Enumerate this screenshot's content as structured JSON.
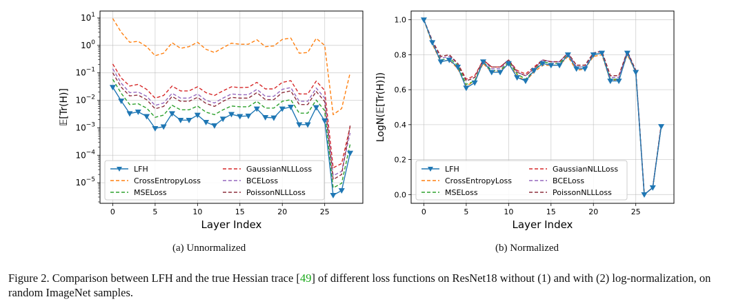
{
  "chart_data": [
    {
      "type": "line",
      "panel_caption": "(a) Unnormalized",
      "xlabel": "Layer Index",
      "ylabel": "𝔼[Tr(H)]",
      "yscale": "log",
      "xlim": [
        -1.5,
        29.5
      ],
      "ylim_log10": [
        -5.75,
        1.25
      ],
      "xticks": [
        0,
        5,
        10,
        15,
        20,
        25
      ],
      "yticks": [
        {
          "exp": 1,
          "label": "10",
          "sup": "1"
        },
        {
          "exp": 0,
          "label": "10",
          "sup": "0"
        },
        {
          "exp": -1,
          "label": "10",
          "sup": "−1"
        },
        {
          "exp": -2,
          "label": "10",
          "sup": "−2"
        },
        {
          "exp": -3,
          "label": "10",
          "sup": "−3"
        },
        {
          "exp": -4,
          "label": "10",
          "sup": "−4"
        },
        {
          "exp": -5,
          "label": "10",
          "sup": "−5"
        }
      ],
      "grid": true,
      "legend_position": "lower-left",
      "x": [
        0,
        1,
        2,
        3,
        4,
        5,
        6,
        7,
        8,
        9,
        10,
        11,
        12,
        13,
        14,
        15,
        16,
        17,
        18,
        19,
        20,
        21,
        22,
        23,
        24,
        25,
        26,
        27,
        28
      ],
      "series": [
        {
          "name": "LFH",
          "color": "#1f77b4",
          "style": "solid-marker",
          "values": [
            0.03,
            0.0095,
            0.0033,
            0.0038,
            0.0026,
            0.00095,
            0.0011,
            0.0033,
            0.0019,
            0.0019,
            0.0029,
            0.0016,
            0.0012,
            0.0021,
            0.0031,
            0.0026,
            0.0027,
            0.0049,
            0.0024,
            0.0023,
            0.0049,
            0.0057,
            0.0013,
            0.0013,
            0.0055,
            0.0018,
            3.5e-06,
            5.2e-06,
            0.00012
          ]
        },
        {
          "name": "CrossEntropyLoss",
          "color": "#ff7f0e",
          "style": "dashed",
          "values": [
            9.5,
            3.0,
            1.3,
            1.4,
            0.9,
            0.42,
            0.52,
            1.25,
            0.78,
            0.9,
            1.3,
            0.72,
            0.55,
            0.82,
            1.2,
            1.1,
            1.1,
            1.6,
            0.9,
            0.95,
            1.65,
            1.85,
            0.52,
            0.55,
            1.8,
            1.0,
            0.003,
            0.005,
            0.1
          ]
        },
        {
          "name": "MSELoss",
          "color": "#2ca02c",
          "style": "dashed",
          "values": [
            0.058,
            0.018,
            0.007,
            0.0075,
            0.0052,
            0.0024,
            0.0029,
            0.0066,
            0.0045,
            0.0045,
            0.0062,
            0.0037,
            0.003,
            0.0045,
            0.0062,
            0.0058,
            0.0058,
            0.0092,
            0.0052,
            0.0052,
            0.0092,
            0.0105,
            0.0034,
            0.0034,
            0.0102,
            0.0042,
            6.5e-06,
            9.5e-06,
            0.00025
          ]
        },
        {
          "name": "GaussianNLLLoss",
          "color": "#d62728",
          "style": "dashed",
          "values": [
            0.21,
            0.065,
            0.033,
            0.038,
            0.025,
            0.012,
            0.015,
            0.033,
            0.022,
            0.022,
            0.031,
            0.019,
            0.015,
            0.022,
            0.031,
            0.029,
            0.03,
            0.045,
            0.026,
            0.026,
            0.045,
            0.052,
            0.017,
            0.017,
            0.05,
            0.023,
            3.5e-05,
            5e-05,
            0.0011
          ]
        },
        {
          "name": "BCELoss",
          "color": "#9467bd",
          "style": "dashed",
          "values": [
            0.14,
            0.042,
            0.019,
            0.02,
            0.014,
            0.0065,
            0.008,
            0.018,
            0.012,
            0.012,
            0.017,
            0.01,
            0.008,
            0.012,
            0.017,
            0.016,
            0.016,
            0.025,
            0.014,
            0.014,
            0.025,
            0.029,
            0.0092,
            0.0092,
            0.028,
            0.012,
            1.8e-05,
            2.6e-05,
            0.00065
          ]
        },
        {
          "name": "PoissonNLLLoss",
          "color": "#8c2d3a",
          "style": "dashed",
          "values": [
            0.1,
            0.03,
            0.0145,
            0.0155,
            0.0105,
            0.0049,
            0.006,
            0.0138,
            0.0092,
            0.0092,
            0.0128,
            0.0077,
            0.006,
            0.0092,
            0.0128,
            0.012,
            0.012,
            0.019,
            0.0106,
            0.0106,
            0.019,
            0.022,
            0.007,
            0.007,
            0.021,
            0.009,
            1.3e-05,
            2e-05,
            0.0012
          ]
        }
      ]
    },
    {
      "type": "line",
      "panel_caption": "(b) Normalized",
      "xlabel": "Layer Index",
      "ylabel": "LogN(𝔼[Tr(H)])",
      "yscale": "linear",
      "xlim": [
        -1.5,
        29.5
      ],
      "ylim": [
        -0.05,
        1.05
      ],
      "xticks": [
        0,
        5,
        10,
        15,
        20,
        25
      ],
      "yticks": [
        0.0,
        0.2,
        0.4,
        0.6,
        0.8,
        1.0
      ],
      "ytick_labels": [
        "0.0",
        "0.2",
        "0.4",
        "0.6",
        "0.8",
        "1.0"
      ],
      "grid": true,
      "legend_position": "lower-left",
      "x": [
        0,
        1,
        2,
        3,
        4,
        5,
        6,
        7,
        8,
        9,
        10,
        11,
        12,
        13,
        14,
        15,
        16,
        17,
        18,
        19,
        20,
        21,
        22,
        23,
        24,
        25,
        26,
        27,
        28
      ],
      "series": [
        {
          "name": "LFH",
          "color": "#1f77b4",
          "style": "solid-marker",
          "values": [
            1.0,
            0.87,
            0.76,
            0.77,
            0.73,
            0.61,
            0.64,
            0.76,
            0.7,
            0.7,
            0.75,
            0.67,
            0.65,
            0.71,
            0.75,
            0.74,
            0.74,
            0.8,
            0.72,
            0.72,
            0.8,
            0.81,
            0.65,
            0.65,
            0.81,
            0.7,
            0.0,
            0.04,
            0.39
          ]
        },
        {
          "name": "CrossEntropyLoss",
          "color": "#ff7f0e",
          "style": "dashed",
          "values": [
            1.0,
            0.86,
            0.76,
            0.77,
            0.72,
            0.62,
            0.65,
            0.75,
            0.7,
            0.71,
            0.75,
            0.68,
            0.65,
            0.7,
            0.74,
            0.74,
            0.74,
            0.79,
            0.71,
            0.72,
            0.79,
            0.8,
            0.65,
            0.66,
            0.8,
            0.7,
            0.0,
            0.04,
            0.39
          ]
        },
        {
          "name": "MSELoss",
          "color": "#2ca02c",
          "style": "dashed",
          "values": [
            1.0,
            0.87,
            0.77,
            0.78,
            0.74,
            0.63,
            0.65,
            0.76,
            0.71,
            0.71,
            0.76,
            0.69,
            0.66,
            0.71,
            0.76,
            0.75,
            0.75,
            0.8,
            0.73,
            0.73,
            0.8,
            0.81,
            0.66,
            0.66,
            0.81,
            0.7,
            0.0,
            0.04,
            0.39
          ]
        },
        {
          "name": "GaussianNLLLoss",
          "color": "#d62728",
          "style": "dashed",
          "values": [
            1.0,
            0.88,
            0.79,
            0.8,
            0.75,
            0.66,
            0.68,
            0.77,
            0.73,
            0.73,
            0.77,
            0.71,
            0.69,
            0.73,
            0.77,
            0.76,
            0.76,
            0.81,
            0.74,
            0.74,
            0.81,
            0.82,
            0.68,
            0.68,
            0.82,
            0.71,
            0.0,
            0.04,
            0.4
          ]
        },
        {
          "name": "BCELoss",
          "color": "#9467bd",
          "style": "dashed",
          "values": [
            1.0,
            0.88,
            0.78,
            0.79,
            0.75,
            0.65,
            0.67,
            0.77,
            0.72,
            0.72,
            0.77,
            0.7,
            0.68,
            0.72,
            0.77,
            0.76,
            0.76,
            0.81,
            0.73,
            0.73,
            0.81,
            0.82,
            0.67,
            0.67,
            0.82,
            0.7,
            0.0,
            0.04,
            0.39
          ]
        },
        {
          "name": "PoissonNLLLoss",
          "color": "#8c2d3a",
          "style": "dashed",
          "values": [
            1.0,
            0.88,
            0.79,
            0.8,
            0.75,
            0.65,
            0.67,
            0.77,
            0.73,
            0.73,
            0.77,
            0.7,
            0.68,
            0.72,
            0.77,
            0.76,
            0.76,
            0.81,
            0.74,
            0.74,
            0.81,
            0.82,
            0.68,
            0.68,
            0.82,
            0.71,
            0.0,
            0.04,
            0.4
          ]
        }
      ]
    }
  ],
  "figure_caption": {
    "prefix": "Figure 2.  Comparison between LFH and the true Hessian trace [",
    "ref": "49",
    "suffix": "] of different loss functions on ResNet18 without (1) and with (2) log-normalization, on random ImageNet samples."
  }
}
